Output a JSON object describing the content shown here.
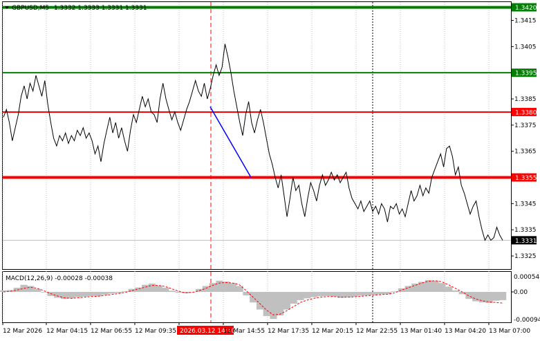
{
  "header": {
    "symbol_label": "GBPUSD,M5",
    "ohlc_label": "1.3332 1.3333 1.3331 1.3331"
  },
  "macd": {
    "label": "MACD(12,26,9) -0.00028 -0.00038",
    "axis_labels": [
      "0.00054",
      "0.00",
      "-0.00094"
    ]
  },
  "colors": {
    "price_line": "#000000",
    "grid": "#c0c0c0",
    "support_resistance": "#ff0000",
    "target_green": "#008000",
    "trend_arrow": "#0000ff",
    "macd_histogram": "#c0c0c0",
    "macd_signal": "#ff0000",
    "current_price_tag": "#000000",
    "time_marker": "#ff0000"
  },
  "chart_data": {
    "type": "line",
    "title": "GBPUSD,M5",
    "y_ticks": [
      "1.3415",
      "1.3405",
      "1.3385",
      "1.3375",
      "1.3365",
      "1.3345",
      "1.3335",
      "1.3325"
    ],
    "ylim": [
      1.332,
      1.3422
    ],
    "x_tick_labels": [
      "12 Mar 2026",
      "12 Mar 04:15",
      "12 Mar 06:55",
      "12 Mar 09:35",
      "2026.03.12 14:10",
      "12 Mar 14:55",
      "12 Mar 17:35",
      "12 Mar 20:15",
      "12 Mar 22:55",
      "13 Mar 01:40",
      "13 Mar 04:20",
      "13 Mar 07:00"
    ],
    "levels": [
      {
        "price": 1.342,
        "label": "1.3420",
        "color": "#008000"
      },
      {
        "price": 1.3395,
        "label": "1.3395",
        "color": "#008000"
      },
      {
        "price": 1.338,
        "label": "1.3380",
        "color": "#ff0000"
      },
      {
        "price": 1.3355,
        "label": "1.3355",
        "color": "#ff0000"
      }
    ],
    "current_price": {
      "price": 1.3331,
      "label": "1.3331"
    },
    "series": [
      {
        "values": [
          1.3378,
          1.3381,
          1.3376,
          1.3369,
          1.3374,
          1.3379,
          1.3386,
          1.339,
          1.3385,
          1.3391,
          1.3388,
          1.3394,
          1.339,
          1.3386,
          1.3392,
          1.3383,
          1.3376,
          1.337,
          1.3367,
          1.3371,
          1.3369,
          1.3372,
          1.3368,
          1.3371,
          1.3369,
          1.3373,
          1.3371,
          1.3374,
          1.337,
          1.3372,
          1.3369,
          1.3364,
          1.3367,
          1.3361,
          1.3368,
          1.3373,
          1.3378,
          1.3372,
          1.3376,
          1.337,
          1.3374,
          1.3369,
          1.3365,
          1.3373,
          1.3379,
          1.3376,
          1.3381,
          1.3386,
          1.3382,
          1.3385,
          1.338,
          1.3379,
          1.3376,
          1.3385,
          1.3391,
          1.3385,
          1.3381,
          1.3377,
          1.338,
          1.3376,
          1.3373,
          1.3377,
          1.3381,
          1.3384,
          1.3388,
          1.3392,
          1.3388,
          1.3386,
          1.3391,
          1.3385,
          1.3389,
          1.3394,
          1.3398,
          1.3394,
          1.3397,
          1.3406,
          1.3401,
          1.3395,
          1.3388,
          1.3382,
          1.3376,
          1.3371,
          1.3379,
          1.3384,
          1.3376,
          1.3372,
          1.3377,
          1.3381,
          1.3376,
          1.337,
          1.3364,
          1.336,
          1.3355,
          1.3351,
          1.3356,
          1.3348,
          1.334,
          1.3347,
          1.3355,
          1.335,
          1.3352,
          1.3345,
          1.334,
          1.3347,
          1.3353,
          1.335,
          1.3346,
          1.3352,
          1.3356,
          1.3352,
          1.3354,
          1.3357,
          1.3354,
          1.3356,
          1.3353,
          1.3355,
          1.3357,
          1.3351,
          1.3347,
          1.3345,
          1.3343,
          1.3346,
          1.3342,
          1.3344,
          1.3346,
          1.3342,
          1.3344,
          1.3341,
          1.3345,
          1.3343,
          1.3338,
          1.3344,
          1.3343,
          1.3345,
          1.3341,
          1.3343,
          1.334,
          1.3345,
          1.335,
          1.3346,
          1.3348,
          1.3352,
          1.3348,
          1.3351,
          1.3349,
          1.3355,
          1.3358,
          1.3361,
          1.3364,
          1.3359,
          1.3366,
          1.3367,
          1.3363,
          1.3356,
          1.3359,
          1.3352,
          1.3349,
          1.3345,
          1.3341,
          1.3344,
          1.3346,
          1.334,
          1.3335,
          1.3331,
          1.3333,
          1.3331,
          1.3332,
          1.3336,
          1.3333,
          1.3331
        ]
      }
    ],
    "trend_arrow": {
      "from": {
        "x_label": "2026.03.12 14:10",
        "price": 1.3382
      },
      "to": {
        "x_label": "12 Mar 14:55",
        "price": 1.3355
      }
    },
    "macd_series": [
      {
        "name": "MACD",
        "values": [
          5e-05,
          6e-05,
          0.00014,
          0.00024,
          0.0002,
          0.0001,
          -2e-05,
          -0.00014,
          -0.0002,
          -0.00024,
          -0.00022,
          -0.00018,
          -0.00016,
          -0.00014,
          -0.00015,
          -0.0001,
          -6e-05,
          -4e-05,
          2e-05,
          0.0001,
          0.00015,
          0.00024,
          0.00028,
          0.00022,
          0.00014,
          4e-05,
          -3e-05,
          -5e-05,
          0.0,
          0.0001,
          0.0002,
          0.0003,
          0.00038,
          0.00035,
          0.0003,
          0.0002,
          -0.00012,
          -0.00036,
          -0.0006,
          -0.00082,
          -0.00092,
          -0.0008,
          -0.0006,
          -0.0004,
          -0.00028,
          -0.00022,
          -0.00018,
          -0.00015,
          -0.00014,
          -0.00016,
          -0.0002,
          -0.00018,
          -0.00016,
          -0.00013,
          -0.00012,
          -0.0001,
          -8e-05,
          -8e-05,
          2e-05,
          0.00012,
          0.0002,
          0.00028,
          0.00034,
          0.0004,
          0.00038,
          0.0003,
          0.00018,
          5e-05,
          -8e-05,
          -0.00024,
          -0.00032,
          -0.00036,
          -0.00038,
          -0.0003,
          -0.00028
        ]
      },
      {
        "name": "Signal",
        "values": [
          0.0,
          2e-05,
          6e-05,
          0.00012,
          0.00016,
          0.00012,
          4e-05,
          -6e-05,
          -0.00014,
          -0.0002,
          -0.00022,
          -0.0002,
          -0.00018,
          -0.00016,
          -0.00015,
          -0.00012,
          -9e-05,
          -6e-05,
          -2e-05,
          4e-05,
          0.0001,
          0.00016,
          0.00022,
          0.00022,
          0.00018,
          0.0001,
          2e-05,
          -3e-05,
          -2e-05,
          4e-05,
          0.00012,
          0.00022,
          0.0003,
          0.00032,
          0.0003,
          0.00024,
          4e-05,
          -0.00018,
          -0.0004,
          -0.00062,
          -0.00078,
          -0.00076,
          -0.00064,
          -0.0005,
          -0.00036,
          -0.00028,
          -0.00022,
          -0.00018,
          -0.00016,
          -0.00016,
          -0.00018,
          -0.00018,
          -0.00017,
          -0.00015,
          -0.00013,
          -0.00011,
          -9e-05,
          -8e-05,
          -3e-05,
          6e-05,
          0.00014,
          0.00022,
          0.0003,
          0.00036,
          0.00038,
          0.00034,
          0.00024,
          0.00012,
          0.0,
          -0.00014,
          -0.00024,
          -0.0003,
          -0.00034,
          -0.00036,
          -0.00038
        ]
      }
    ]
  }
}
